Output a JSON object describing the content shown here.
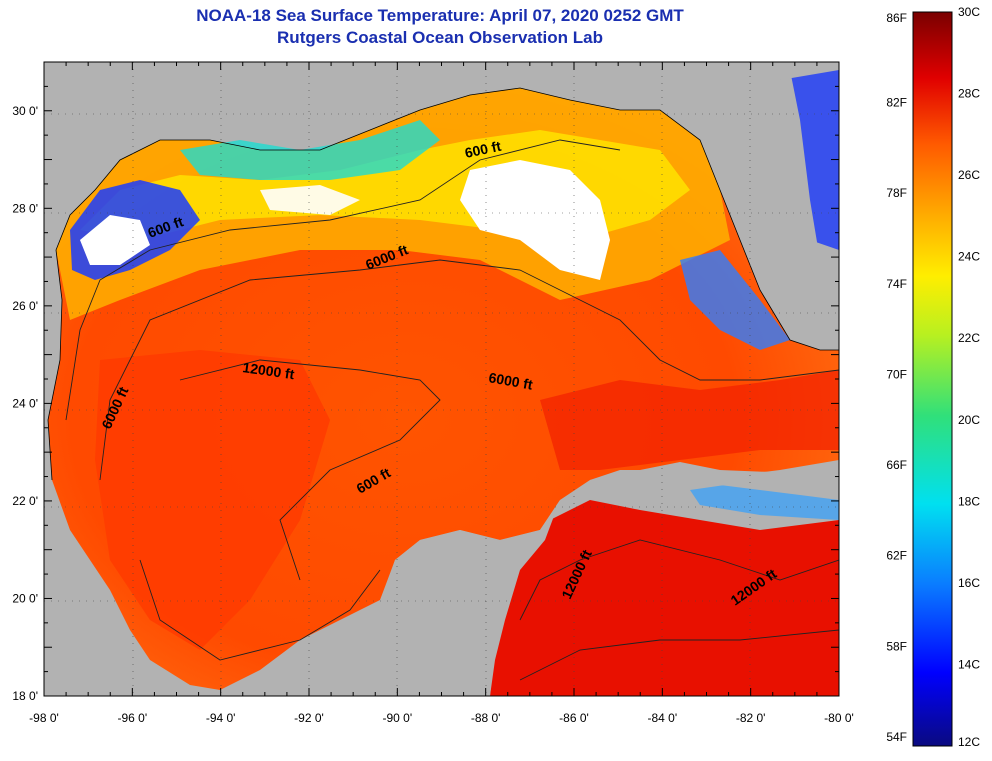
{
  "title": "NOAA-18 Sea Surface Temperature:  April 07, 2020 0252 GMT",
  "subtitle": "Rutgers Coastal Ocean Observation Lab",
  "map": {
    "lon_range": [
      -98,
      -80
    ],
    "lat_range": [
      18,
      31
    ],
    "lon_ticks": [
      "-98 0'",
      "-96 0'",
      "-94 0'",
      "-92 0'",
      "-90 0'",
      "-88 0'",
      "-86 0'",
      "-84 0'",
      "-82 0'",
      "-80 0'"
    ],
    "lat_ticks": [
      "30 0'",
      "28 0'",
      "26 0'",
      "24 0'",
      "22 0'",
      "20 0'",
      "18 0'"
    ],
    "land_color": "#b2b2b2",
    "no_data_color": "#ffffff"
  },
  "contours": [
    "600 ft",
    "600 ft",
    "6000 ft",
    "12000 ft",
    "6000 ft",
    "6000 ft",
    "600 ft",
    "12000 ft",
    "12000 ft"
  ],
  "colorbar": {
    "fahrenheit_labels": [
      "86F",
      "82F",
      "78F",
      "74F",
      "70F",
      "66F",
      "62F",
      "58F",
      "54F"
    ],
    "celsius_labels": [
      "30C",
      "28C",
      "26C",
      "24C",
      "22C",
      "20C",
      "18C",
      "16C",
      "14C",
      "12C"
    ],
    "min_c": 12,
    "max_c": 30
  }
}
